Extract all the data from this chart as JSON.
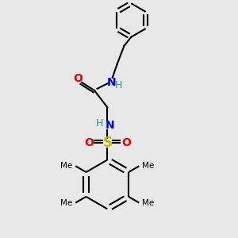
{
  "bg_color": "#e8e8e8",
  "bond_color": "#000000",
  "N_color": "#0000ee",
  "O_color": "#ee0000",
  "S_color": "#bbbb00",
  "H_color": "#448888",
  "C_color": "#000000",
  "line_width": 1.5,
  "font_size": 9,
  "figsize": [
    3.0,
    3.0
  ],
  "dpi": 100,
  "xlim": [
    0,
    10
  ],
  "ylim": [
    0,
    10
  ]
}
